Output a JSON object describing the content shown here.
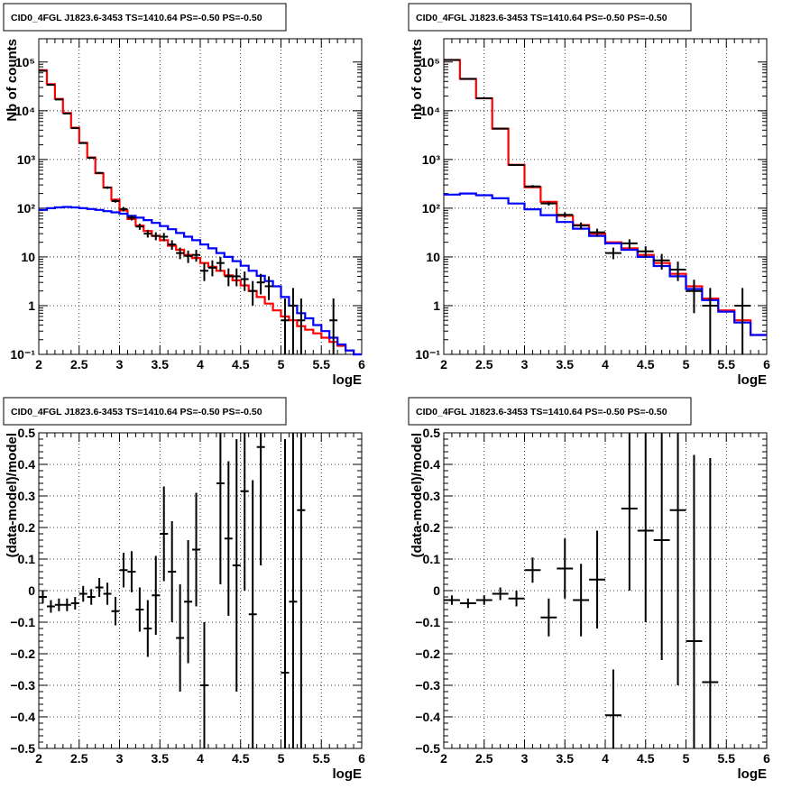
{
  "chart_data": [
    {
      "type": "line",
      "title": "CID0_4FGL J1823.6-3453 TS=1410.64 PS=-0.50 PS=-0.50",
      "xlabel": "logE",
      "ylabel": "Nb of counts",
      "log_y": true,
      "xlim": [
        2,
        6
      ],
      "ylim": [
        0.1,
        300000
      ],
      "xticks": [
        2,
        2.5,
        3,
        3.5,
        4,
        4.5,
        5,
        5.5,
        6
      ],
      "xtick_labels": [
        "2",
        "2.5",
        "3",
        "3.5",
        "4",
        "4.5",
        "5",
        "5.5",
        "6"
      ],
      "yticks": [
        0.1,
        1,
        10,
        100,
        1000,
        10000,
        100000
      ],
      "ytick_labels": [
        "10⁻¹",
        "1",
        "10",
        "10²",
        "10³",
        "10⁴",
        "10⁵"
      ],
      "grid": true,
      "bin_edges": [
        2.0,
        2.1,
        2.2,
        2.3,
        2.4,
        2.5,
        2.6,
        2.7,
        2.8,
        2.9,
        3.0,
        3.1,
        3.2,
        3.3,
        3.4,
        3.5,
        3.6,
        3.7,
        3.8,
        3.9,
        4.0,
        4.1,
        4.2,
        4.3,
        4.4,
        4.5,
        4.6,
        4.7,
        4.8,
        4.9,
        5.0,
        5.1,
        5.2,
        5.3,
        5.4,
        5.5,
        5.6,
        5.7,
        5.8,
        5.9,
        6.0
      ],
      "series": [
        {
          "color": "#ff0000",
          "style": "step",
          "values": [
            68000,
            35000,
            17500,
            9000,
            4500,
            2200,
            1100,
            520,
            265,
            150,
            90,
            60,
            44,
            34,
            27,
            22,
            17,
            14,
            11,
            9.5,
            7.5,
            6.3,
            5.2,
            4.2,
            3.3,
            2.6,
            2.0,
            1.5,
            1.1,
            0.8,
            0.6,
            0.5,
            0.38,
            0.32,
            0.27,
            0.22,
            0.18,
            0.15,
            0.12,
            0.1
          ]
        },
        {
          "color": "#0000ff",
          "style": "step",
          "values": [
            92,
            100,
            104,
            106,
            104,
            100,
            96,
            92,
            87,
            82,
            77,
            70,
            64,
            57,
            50,
            43,
            37,
            31,
            26,
            22,
            18,
            15,
            12,
            10,
            8.2,
            6.6,
            5.2,
            4.1,
            3.2,
            2.5,
            1.5,
            1.0,
            0.7,
            0.55,
            0.4,
            0.3,
            0.22,
            0.16,
            0.12,
            0.1
          ]
        }
      ],
      "points": [
        {
          "x": 2.05,
          "y": 66000,
          "xerr": 0.05,
          "ylo": 65500,
          "yhi": 66500
        },
        {
          "x": 2.15,
          "y": 34000,
          "xerr": 0.05,
          "ylo": 33600,
          "yhi": 34400
        },
        {
          "x": 2.25,
          "y": 17000,
          "xerr": 0.05,
          "ylo": 16700,
          "yhi": 17300
        },
        {
          "x": 2.35,
          "y": 8800,
          "xerr": 0.05,
          "ylo": 8600,
          "yhi": 9000
        },
        {
          "x": 2.45,
          "y": 4400,
          "xerr": 0.05,
          "ylo": 4300,
          "yhi": 4500
        },
        {
          "x": 2.55,
          "y": 2170,
          "xerr": 0.05,
          "ylo": 2100,
          "yhi": 2240
        },
        {
          "x": 2.65,
          "y": 1080,
          "xerr": 0.05,
          "ylo": 1040,
          "yhi": 1120
        },
        {
          "x": 2.75,
          "y": 530,
          "xerr": 0.05,
          "ylo": 505,
          "yhi": 555
        },
        {
          "x": 2.85,
          "y": 265,
          "xerr": 0.05,
          "ylo": 250,
          "yhi": 280
        },
        {
          "x": 2.95,
          "y": 140,
          "xerr": 0.05,
          "ylo": 130,
          "yhi": 152
        },
        {
          "x": 3.05,
          "y": 96,
          "xerr": 0.05,
          "ylo": 86,
          "yhi": 106
        },
        {
          "x": 3.15,
          "y": 64,
          "xerr": 0.05,
          "ylo": 56,
          "yhi": 72
        },
        {
          "x": 3.25,
          "y": 42,
          "xerr": 0.05,
          "ylo": 36,
          "yhi": 48
        },
        {
          "x": 3.35,
          "y": 30,
          "xerr": 0.05,
          "ylo": 25,
          "yhi": 36
        },
        {
          "x": 3.45,
          "y": 27,
          "xerr": 0.05,
          "ylo": 22,
          "yhi": 32
        },
        {
          "x": 3.55,
          "y": 26,
          "xerr": 0.05,
          "ylo": 21,
          "yhi": 31
        },
        {
          "x": 3.65,
          "y": 18,
          "xerr": 0.05,
          "ylo": 14,
          "yhi": 22
        },
        {
          "x": 3.75,
          "y": 12,
          "xerr": 0.05,
          "ylo": 9,
          "yhi": 15.5
        },
        {
          "x": 3.85,
          "y": 10.5,
          "xerr": 0.05,
          "ylo": 7.5,
          "yhi": 13.5
        },
        {
          "x": 3.95,
          "y": 11,
          "xerr": 0.05,
          "ylo": 8,
          "yhi": 14
        },
        {
          "x": 4.05,
          "y": 5.2,
          "xerr": 0.05,
          "ylo": 3.2,
          "yhi": 7.5
        },
        {
          "x": 4.15,
          "y": 6,
          "xerr": 0.05,
          "ylo": 4,
          "yhi": 8.5
        },
        {
          "x": 4.25,
          "y": 7.5,
          "xerr": 0.05,
          "ylo": 5,
          "yhi": 10
        },
        {
          "x": 4.35,
          "y": 4,
          "xerr": 0.05,
          "ylo": 2.5,
          "yhi": 5.8
        },
        {
          "x": 4.45,
          "y": 4,
          "xerr": 0.05,
          "ylo": 2.5,
          "yhi": 5.8
        },
        {
          "x": 4.55,
          "y": 3.5,
          "xerr": 0.05,
          "ylo": 2,
          "yhi": 5
        },
        {
          "x": 4.65,
          "y": 2,
          "xerr": 0.05,
          "ylo": 1,
          "yhi": 3.2
        },
        {
          "x": 4.75,
          "y": 3,
          "xerr": 0.05,
          "ylo": 1.7,
          "yhi": 4.5
        },
        {
          "x": 4.85,
          "y": 2.5,
          "xerr": 0.05,
          "ylo": 1.3,
          "yhi": 4
        },
        {
          "x": 5.05,
          "y": 0.5,
          "xerr": 0.05,
          "ylo": 0.1,
          "yhi": 1.4
        },
        {
          "x": 5.15,
          "y": 1,
          "xerr": 0.05,
          "ylo": 0.1,
          "yhi": 2.3
        },
        {
          "x": 5.25,
          "y": 0.5,
          "xerr": 0.05,
          "ylo": 0.1,
          "yhi": 1.4
        },
        {
          "x": 5.65,
          "y": 0.5,
          "xerr": 0.05,
          "ylo": 0.1,
          "yhi": 1.4
        }
      ]
    },
    {
      "type": "line",
      "title": "CID0_4FGL J1823.6-3453 TS=1410.64 PS=-0.50 PS=-0.50",
      "xlabel": "logE",
      "ylabel": "nb of counts",
      "log_y": true,
      "xlim": [
        2,
        6
      ],
      "ylim": [
        0.1,
        300000
      ],
      "xticks": [
        2,
        2.5,
        3,
        3.5,
        4,
        4.5,
        5,
        5.5,
        6
      ],
      "xtick_labels": [
        "2",
        "2.5",
        "3",
        "3.5",
        "4",
        "4.5",
        "5",
        "5.5",
        "6"
      ],
      "yticks": [
        0.1,
        1,
        10,
        100,
        1000,
        10000,
        100000
      ],
      "ytick_labels": [
        "10⁻¹",
        "1",
        "10",
        "10²",
        "10³",
        "10⁴",
        "10⁵"
      ],
      "grid": true,
      "bin_edges": [
        2.0,
        2.2,
        2.4,
        2.6,
        2.8,
        3.0,
        3.2,
        3.4,
        3.6,
        3.8,
        4.0,
        4.2,
        4.4,
        4.6,
        4.8,
        5.0,
        5.2,
        5.4,
        5.6,
        5.8,
        6.0
      ],
      "series": [
        {
          "color": "#ff0000",
          "style": "step",
          "values": [
            110000,
            45000,
            18000,
            4300,
            780,
            270,
            135,
            70,
            45,
            30,
            20,
            15,
            11,
            7.5,
            4.5,
            2.5,
            1.4,
            0.8,
            0.5,
            0.25
          ]
        },
        {
          "color": "#0000ff",
          "style": "step",
          "values": [
            190,
            200,
            185,
            160,
            125,
            95,
            72,
            52,
            38,
            27,
            19,
            14,
            10,
            6.5,
            4,
            2.2,
            1.3,
            0.75,
            0.45,
            0.25
          ]
        }
      ],
      "points": [
        {
          "x": 2.1,
          "y": 110000,
          "xerr": 0.1,
          "ylo": 109500,
          "yhi": 110500
        },
        {
          "x": 2.3,
          "y": 45000,
          "xerr": 0.1,
          "ylo": 44600,
          "yhi": 45400
        },
        {
          "x": 2.5,
          "y": 18000,
          "xerr": 0.1,
          "ylo": 17700,
          "yhi": 18300
        },
        {
          "x": 2.7,
          "y": 4300,
          "xerr": 0.1,
          "ylo": 4200,
          "yhi": 4400
        },
        {
          "x": 2.9,
          "y": 770,
          "xerr": 0.1,
          "ylo": 740,
          "yhi": 800
        },
        {
          "x": 3.1,
          "y": 280,
          "xerr": 0.1,
          "ylo": 262,
          "yhi": 298
        },
        {
          "x": 3.3,
          "y": 125,
          "xerr": 0.1,
          "ylo": 113,
          "yhi": 137
        },
        {
          "x": 3.5,
          "y": 73,
          "xerr": 0.1,
          "ylo": 64,
          "yhi": 82
        },
        {
          "x": 3.7,
          "y": 44,
          "xerr": 0.1,
          "ylo": 37,
          "yhi": 51
        },
        {
          "x": 3.9,
          "y": 32,
          "xerr": 0.1,
          "ylo": 26,
          "yhi": 38
        },
        {
          "x": 4.1,
          "y": 12,
          "xerr": 0.1,
          "ylo": 9,
          "yhi": 15.5
        },
        {
          "x": 4.3,
          "y": 19,
          "xerr": 0.1,
          "ylo": 15,
          "yhi": 23
        },
        {
          "x": 4.5,
          "y": 13,
          "xerr": 0.1,
          "ylo": 9.5,
          "yhi": 16.5
        },
        {
          "x": 4.7,
          "y": 8.5,
          "xerr": 0.1,
          "ylo": 5.5,
          "yhi": 11.5
        },
        {
          "x": 4.9,
          "y": 5.5,
          "xerr": 0.1,
          "ylo": 3.2,
          "yhi": 8
        },
        {
          "x": 5.1,
          "y": 2,
          "xerr": 0.1,
          "ylo": 0.7,
          "yhi": 3.4
        },
        {
          "x": 5.3,
          "y": 1,
          "xerr": 0.1,
          "ylo": 0.1,
          "yhi": 2.3
        },
        {
          "x": 5.7,
          "y": 1,
          "xerr": 0.1,
          "ylo": 0.1,
          "yhi": 2.3
        }
      ]
    },
    {
      "type": "scatter",
      "title": "CID0_4FGL J1823.6-3453 TS=1410.64 PS=-0.50 PS=-0.50",
      "xlabel": "logE",
      "ylabel": "(data-model)/model",
      "log_y": false,
      "xlim": [
        2,
        6
      ],
      "ylim": [
        -0.5,
        0.5
      ],
      "xticks": [
        2,
        2.5,
        3,
        3.5,
        4,
        4.5,
        5,
        5.5,
        6
      ],
      "xtick_labels": [
        "2",
        "2.5",
        "3",
        "3.5",
        "4",
        "4.5",
        "5",
        "5.5",
        "6"
      ],
      "yticks": [
        -0.5,
        -0.4,
        -0.3,
        -0.2,
        -0.1,
        0,
        0.1,
        0.2,
        0.3,
        0.4,
        0.5
      ],
      "ytick_labels": [
        "−0.5",
        "−0.4",
        "−0.3",
        "−0.2",
        "−0.1",
        "0",
        "0.1",
        "0.2",
        "0.3",
        "0.4",
        "0.5"
      ],
      "grid": true,
      "points": [
        {
          "x": 2.05,
          "y": -0.02,
          "xerr": 0.05,
          "ylo": -0.04,
          "yhi": 0.0
        },
        {
          "x": 2.15,
          "y": -0.05,
          "xerr": 0.05,
          "ylo": -0.07,
          "yhi": -0.03
        },
        {
          "x": 2.25,
          "y": -0.045,
          "xerr": 0.05,
          "ylo": -0.065,
          "yhi": -0.025
        },
        {
          "x": 2.35,
          "y": -0.045,
          "xerr": 0.05,
          "ylo": -0.065,
          "yhi": -0.025
        },
        {
          "x": 2.45,
          "y": -0.04,
          "xerr": 0.05,
          "ylo": -0.06,
          "yhi": -0.02
        },
        {
          "x": 2.55,
          "y": -0.01,
          "xerr": 0.05,
          "ylo": -0.035,
          "yhi": 0.015
        },
        {
          "x": 2.65,
          "y": -0.02,
          "xerr": 0.05,
          "ylo": -0.045,
          "yhi": 0.005
        },
        {
          "x": 2.75,
          "y": 0.01,
          "xerr": 0.05,
          "ylo": -0.02,
          "yhi": 0.04
        },
        {
          "x": 2.85,
          "y": -0.01,
          "xerr": 0.05,
          "ylo": -0.045,
          "yhi": 0.025
        },
        {
          "x": 2.95,
          "y": -0.065,
          "xerr": 0.05,
          "ylo": -0.11,
          "yhi": -0.02
        },
        {
          "x": 3.05,
          "y": 0.065,
          "xerr": 0.05,
          "ylo": 0.01,
          "yhi": 0.12
        },
        {
          "x": 3.15,
          "y": 0.06,
          "xerr": 0.05,
          "ylo": -0.005,
          "yhi": 0.125
        },
        {
          "x": 3.25,
          "y": -0.06,
          "xerr": 0.05,
          "ylo": -0.13,
          "yhi": 0.01
        },
        {
          "x": 3.35,
          "y": -0.12,
          "xerr": 0.05,
          "ylo": -0.21,
          "yhi": -0.03
        },
        {
          "x": 3.45,
          "y": -0.015,
          "xerr": 0.05,
          "ylo": -0.14,
          "yhi": 0.11
        },
        {
          "x": 3.55,
          "y": 0.18,
          "xerr": 0.05,
          "ylo": 0.03,
          "yhi": 0.33
        },
        {
          "x": 3.65,
          "y": 0.06,
          "xerr": 0.05,
          "ylo": -0.1,
          "yhi": 0.22
        },
        {
          "x": 3.75,
          "y": -0.15,
          "xerr": 0.05,
          "ylo": -0.32,
          "yhi": 0.02
        },
        {
          "x": 3.85,
          "y": -0.035,
          "xerr": 0.05,
          "ylo": -0.23,
          "yhi": 0.16
        },
        {
          "x": 3.95,
          "y": 0.13,
          "xerr": 0.05,
          "ylo": -0.05,
          "yhi": 0.31
        },
        {
          "x": 4.05,
          "y": -0.3,
          "xerr": 0.05,
          "ylo": -0.5,
          "yhi": -0.1
        },
        {
          "x": 4.25,
          "y": 0.34,
          "xerr": 0.05,
          "ylo": 0.02,
          "yhi": 0.5
        },
        {
          "x": 4.35,
          "y": 0.165,
          "xerr": 0.05,
          "ylo": -0.08,
          "yhi": 0.41
        },
        {
          "x": 4.45,
          "y": 0.08,
          "xerr": 0.05,
          "ylo": -0.32,
          "yhi": 0.48
        },
        {
          "x": 4.55,
          "y": 0.315,
          "xerr": 0.05,
          "ylo": 0.0,
          "yhi": 0.5
        },
        {
          "x": 4.65,
          "y": -0.075,
          "xerr": 0.05,
          "ylo": -0.5,
          "yhi": 0.35
        },
        {
          "x": 4.75,
          "y": 0.455,
          "xerr": 0.05,
          "ylo": 0.08,
          "yhi": 0.5
        },
        {
          "x": 5.05,
          "y": -0.26,
          "xerr": 0.05,
          "ylo": -0.5,
          "yhi": 0.48
        },
        {
          "x": 5.15,
          "y": -0.035,
          "xerr": 0.05,
          "ylo": -0.5,
          "yhi": 0.5
        },
        {
          "x": 5.25,
          "y": 0.255,
          "xerr": 0.05,
          "ylo": -0.5,
          "yhi": 0.5
        }
      ]
    },
    {
      "type": "scatter",
      "title": "CID0_4FGL J1823.6-3453 TS=1410.64 PS=-0.50 PS=-0.50",
      "xlabel": "logE",
      "ylabel": "(data-model)/model",
      "log_y": false,
      "xlim": [
        2,
        6
      ],
      "ylim": [
        -0.5,
        0.5
      ],
      "xticks": [
        2,
        2.5,
        3,
        3.5,
        4,
        4.5,
        5,
        5.5,
        6
      ],
      "xtick_labels": [
        "2",
        "2.5",
        "3",
        "3.5",
        "4",
        "4.5",
        "5",
        "5.5",
        "6"
      ],
      "yticks": [
        -0.5,
        -0.4,
        -0.3,
        -0.2,
        -0.1,
        0,
        0.1,
        0.2,
        0.3,
        0.4,
        0.5
      ],
      "ytick_labels": [
        "−0.5",
        "−0.4",
        "−0.3",
        "−0.2",
        "−0.1",
        "0",
        "0.1",
        "0.2",
        "0.3",
        "0.4",
        "0.5"
      ],
      "grid": true,
      "points": [
        {
          "x": 2.1,
          "y": -0.03,
          "xerr": 0.1,
          "ylo": -0.045,
          "yhi": -0.015
        },
        {
          "x": 2.3,
          "y": -0.04,
          "xerr": 0.1,
          "ylo": -0.055,
          "yhi": -0.025
        },
        {
          "x": 2.5,
          "y": -0.03,
          "xerr": 0.1,
          "ylo": -0.045,
          "yhi": -0.015
        },
        {
          "x": 2.7,
          "y": -0.01,
          "xerr": 0.1,
          "ylo": -0.03,
          "yhi": 0.01
        },
        {
          "x": 2.9,
          "y": -0.025,
          "xerr": 0.1,
          "ylo": -0.05,
          "yhi": 0.0
        },
        {
          "x": 3.1,
          "y": 0.065,
          "xerr": 0.1,
          "ylo": 0.025,
          "yhi": 0.105
        },
        {
          "x": 3.3,
          "y": -0.085,
          "xerr": 0.1,
          "ylo": -0.145,
          "yhi": -0.025
        },
        {
          "x": 3.5,
          "y": 0.07,
          "xerr": 0.1,
          "ylo": -0.025,
          "yhi": 0.165
        },
        {
          "x": 3.7,
          "y": -0.03,
          "xerr": 0.1,
          "ylo": -0.145,
          "yhi": 0.085
        },
        {
          "x": 3.9,
          "y": 0.035,
          "xerr": 0.1,
          "ylo": -0.12,
          "yhi": 0.19
        },
        {
          "x": 4.1,
          "y": -0.395,
          "xerr": 0.1,
          "ylo": -0.5,
          "yhi": -0.25
        },
        {
          "x": 4.3,
          "y": 0.26,
          "xerr": 0.1,
          "ylo": 0.0,
          "yhi": 0.5
        },
        {
          "x": 4.5,
          "y": 0.19,
          "xerr": 0.1,
          "ylo": -0.1,
          "yhi": 0.5
        },
        {
          "x": 4.7,
          "y": 0.16,
          "xerr": 0.1,
          "ylo": -0.22,
          "yhi": 0.5
        },
        {
          "x": 4.9,
          "y": 0.255,
          "xerr": 0.1,
          "ylo": -0.3,
          "yhi": 0.5
        },
        {
          "x": 5.1,
          "y": -0.16,
          "xerr": 0.1,
          "ylo": -0.5,
          "yhi": 0.43
        },
        {
          "x": 5.3,
          "y": -0.29,
          "xerr": 0.1,
          "ylo": -0.5,
          "yhi": 0.42
        }
      ]
    }
  ]
}
